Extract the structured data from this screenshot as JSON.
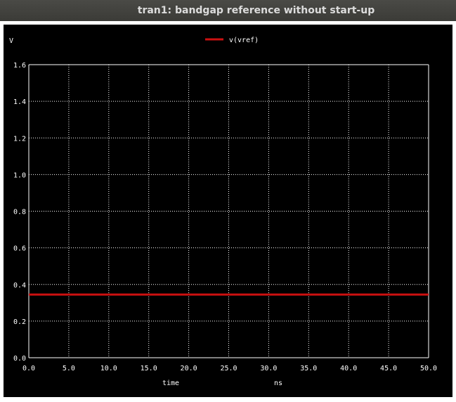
{
  "window": {
    "title": "tran1: bandgap reference without start-up"
  },
  "chart_data": {
    "type": "line",
    "title": "",
    "xlabel": "time",
    "xunit": "ns",
    "yunit": "V",
    "xlim": [
      0,
      50
    ],
    "ylim": [
      0,
      1.6
    ],
    "x_ticks": [
      "0.0",
      "5.0",
      "10.0",
      "15.0",
      "20.0",
      "25.0",
      "30.0",
      "35.0",
      "40.0",
      "45.0",
      "50.0"
    ],
    "y_ticks": [
      "0.0",
      "0.2",
      "0.4",
      "0.6",
      "0.8",
      "1.0",
      "1.2",
      "1.4",
      "1.6"
    ],
    "grid": true,
    "legend_position": "top-center",
    "series": [
      {
        "name": "v(vref)",
        "color": "#cc1010",
        "x": [
          0,
          50
        ],
        "y": [
          0.345,
          0.345
        ]
      }
    ]
  },
  "colors": {
    "background": "#000000",
    "grid": "#ffffff",
    "text": "#ffffff",
    "titlebar": "#3c3b37"
  }
}
